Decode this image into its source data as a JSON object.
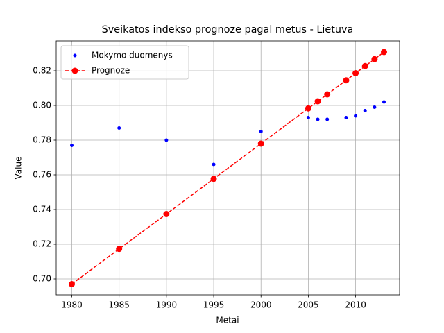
{
  "chart_data": {
    "type": "line",
    "title": "Sveikatos indekso prognoze pagal metus - Lietuva",
    "x_label": "Metai",
    "y_label": "Value",
    "series": [
      {
        "name": "Mokymo duomenys",
        "type": "scatter",
        "color": "#0000ff",
        "x": [
          1980,
          1985,
          1990,
          1995,
          2000,
          2005,
          2006,
          2007,
          2009,
          2010,
          2011,
          2012,
          2013
        ],
        "values": [
          0.777,
          0.787,
          0.78,
          0.766,
          0.785,
          0.793,
          0.792,
          0.792,
          0.793,
          0.794,
          0.797,
          0.799,
          0.802
        ]
      },
      {
        "name": "Prognoze",
        "type": "line",
        "color": "#ff0000",
        "dashed": true,
        "markers": true,
        "x": [
          1980,
          1985,
          1990,
          1995,
          2000,
          2005,
          2006,
          2007,
          2009,
          2010,
          2011,
          2012,
          2013
        ],
        "values": [
          0.697,
          0.7173,
          0.7374,
          0.7577,
          0.778,
          0.7983,
          0.8024,
          0.8064,
          0.8145,
          0.8186,
          0.8227,
          0.8267,
          0.8308
        ]
      }
    ],
    "xlim": [
      1978.35,
      2014.65
    ],
    "xticks": [
      1980,
      1985,
      1990,
      1995,
      2000,
      2005,
      2010
    ],
    "ylim": [
      0.6908,
      0.8372
    ],
    "yticks": [
      {
        "value": 0.7,
        "label": "0.70"
      },
      0.72,
      0.74,
      0.76,
      0.78,
      {
        "value": 0.8,
        "label": "0.80"
      },
      0.82
    ],
    "grid": true,
    "legend": "upper left"
  }
}
